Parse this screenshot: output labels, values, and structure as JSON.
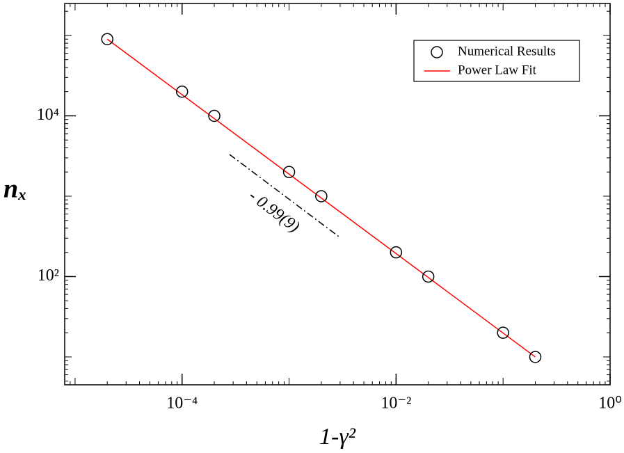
{
  "chart_data": {
    "type": "scatter",
    "xlabel": "1-γ²",
    "ylabel": "nₓ",
    "xscale": "log",
    "yscale": "log",
    "xlim": [
      8e-06,
      1
    ],
    "ylim": [
      4.5,
      250000
    ],
    "xticks": [
      {
        "value": 0.0001,
        "label": "10⁻⁴"
      },
      {
        "value": 0.01,
        "label": "10⁻²"
      },
      {
        "value": 1,
        "label": "10⁰"
      }
    ],
    "yticks": [
      {
        "value": 100,
        "label": "10²"
      },
      {
        "value": 10000,
        "label": "10⁴"
      }
    ],
    "legend": "upper right",
    "annotation": "- 0.99(9)",
    "series": [
      {
        "name": "Numerical Results",
        "color": "#000000",
        "marker": "circle",
        "x": [
          2e-05,
          0.0001,
          0.0002,
          0.001,
          0.002,
          0.01,
          0.02,
          0.1,
          0.2
        ],
        "values": [
          90000,
          20000,
          10000,
          2000,
          1000,
          200,
          100,
          20,
          10
        ]
      },
      {
        "name": "Power Law Fit",
        "color": "#ff0000",
        "marker": "line",
        "x": [
          2e-05,
          0.2
        ],
        "values": [
          90000,
          10
        ]
      }
    ]
  }
}
